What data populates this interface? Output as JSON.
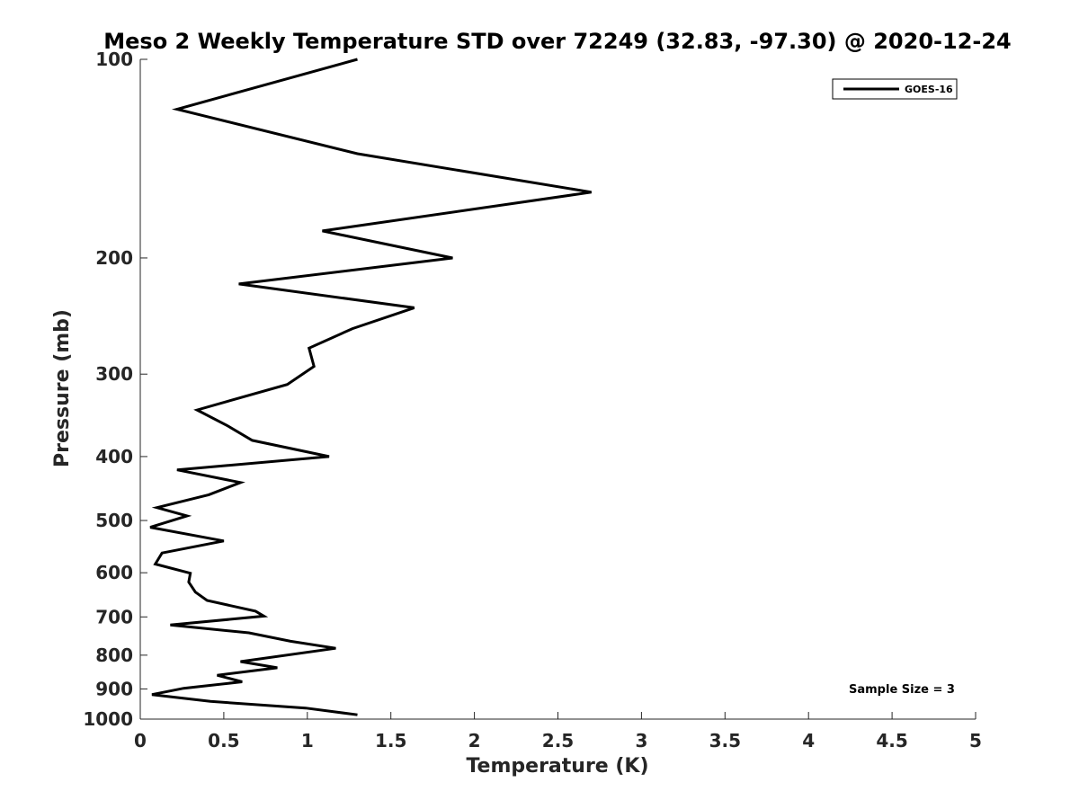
{
  "chart_data": {
    "type": "line",
    "title": "Meso 2 Weekly Temperature STD over 72249 (32.83, -97.30) @ 2020-12-24",
    "xlabel": "Temperature (K)",
    "ylabel": "Pressure (mb)",
    "xlim": [
      0,
      5
    ],
    "ylim": [
      100,
      1000
    ],
    "y_scale": "log",
    "y_reversed": true,
    "grid": false,
    "legend_position": "top-right",
    "x_ticks": [
      "0",
      "0.5",
      "1",
      "1.5",
      "2",
      "2.5",
      "3",
      "3.5",
      "4",
      "4.5",
      "5"
    ],
    "y_ticks": [
      "100",
      "200",
      "300",
      "400",
      "500",
      "600",
      "700",
      "800",
      "900",
      "1000"
    ],
    "series": [
      {
        "name": "GOES-16",
        "color": "#000000",
        "points": [
          [
            1.3,
            100
          ],
          [
            0.22,
            119
          ],
          [
            1.3,
            139
          ],
          [
            2.7,
            159
          ],
          [
            1.09,
            182
          ],
          [
            1.87,
            200
          ],
          [
            0.59,
            219
          ],
          [
            1.64,
            238
          ],
          [
            1.27,
            256
          ],
          [
            1.01,
            274
          ],
          [
            1.04,
            292
          ],
          [
            0.88,
            311
          ],
          [
            0.34,
            340
          ],
          [
            0.52,
            359
          ],
          [
            0.67,
            378
          ],
          [
            1.13,
            400
          ],
          [
            0.22,
            419
          ],
          [
            0.6,
            438
          ],
          [
            0.41,
            457
          ],
          [
            0.1,
            478
          ],
          [
            0.28,
            492
          ],
          [
            0.06,
            512
          ],
          [
            0.5,
            537
          ],
          [
            0.13,
            560
          ],
          [
            0.09,
            582
          ],
          [
            0.3,
            601
          ],
          [
            0.29,
            620
          ],
          [
            0.33,
            642
          ],
          [
            0.4,
            661
          ],
          [
            0.69,
            686
          ],
          [
            0.74,
            698
          ],
          [
            0.18,
            720
          ],
          [
            0.65,
            740
          ],
          [
            0.9,
            762
          ],
          [
            1.17,
            781
          ],
          [
            0.6,
            818
          ],
          [
            0.82,
            836
          ],
          [
            0.46,
            858
          ],
          [
            0.61,
            878
          ],
          [
            0.26,
            898
          ],
          [
            0.07,
            918
          ],
          [
            0.42,
            940
          ],
          [
            0.99,
            962
          ],
          [
            1.3,
            985
          ]
        ]
      }
    ],
    "annotation": "Sample Size = 3"
  }
}
